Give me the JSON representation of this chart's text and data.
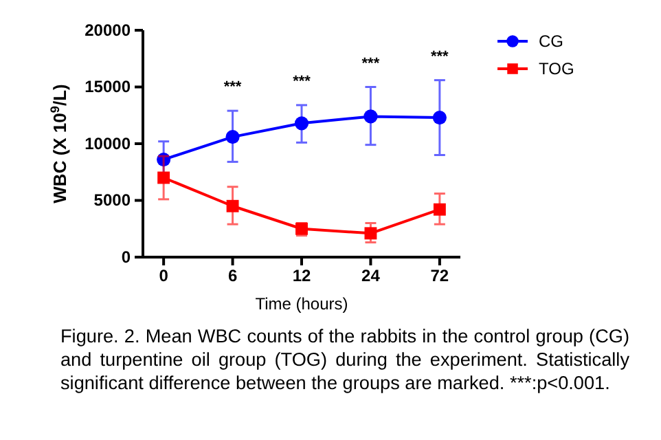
{
  "chart_data": {
    "type": "line",
    "xlabel": "Time (hours)",
    "ylabel": "WBC (X 10$^{9}$/L)",
    "categories": [
      "0",
      "6",
      "12",
      "24",
      "72"
    ],
    "ylim": [
      0,
      20000
    ],
    "yticks": [
      0,
      5000,
      10000,
      15000,
      20000
    ],
    "grid": false,
    "legend": "top right",
    "series": [
      {
        "name": "CG",
        "color": "#0000ff",
        "marker": "circle",
        "values": [
          8600,
          10600,
          11800,
          12400,
          12300
        ],
        "errors": [
          1600,
          [
            8400,
            12900
          ],
          [
            10100,
            13400
          ],
          [
            9900,
            15000
          ],
          [
            9000,
            15600
          ]
        ]
      },
      {
        "name": "TOG",
        "color": "#ff0000",
        "marker": "square",
        "values": [
          7000,
          4500,
          2500,
          2100,
          4200
        ],
        "errors": [
          1900,
          [
            2900,
            6200
          ],
          [
            1900,
            3000
          ],
          [
            1300,
            3000
          ],
          [
            2900,
            5600
          ]
        ]
      }
    ],
    "annotations": [
      "***",
      "***",
      "***",
      "***",
      "Figure. 2. Mean WBC counts of the rabbits in the control group (CG) and turpentine oil group (TOG) during the experiment. Statistically significant difference between the groups are marked. ***:p<0.001."
    ]
  }
}
